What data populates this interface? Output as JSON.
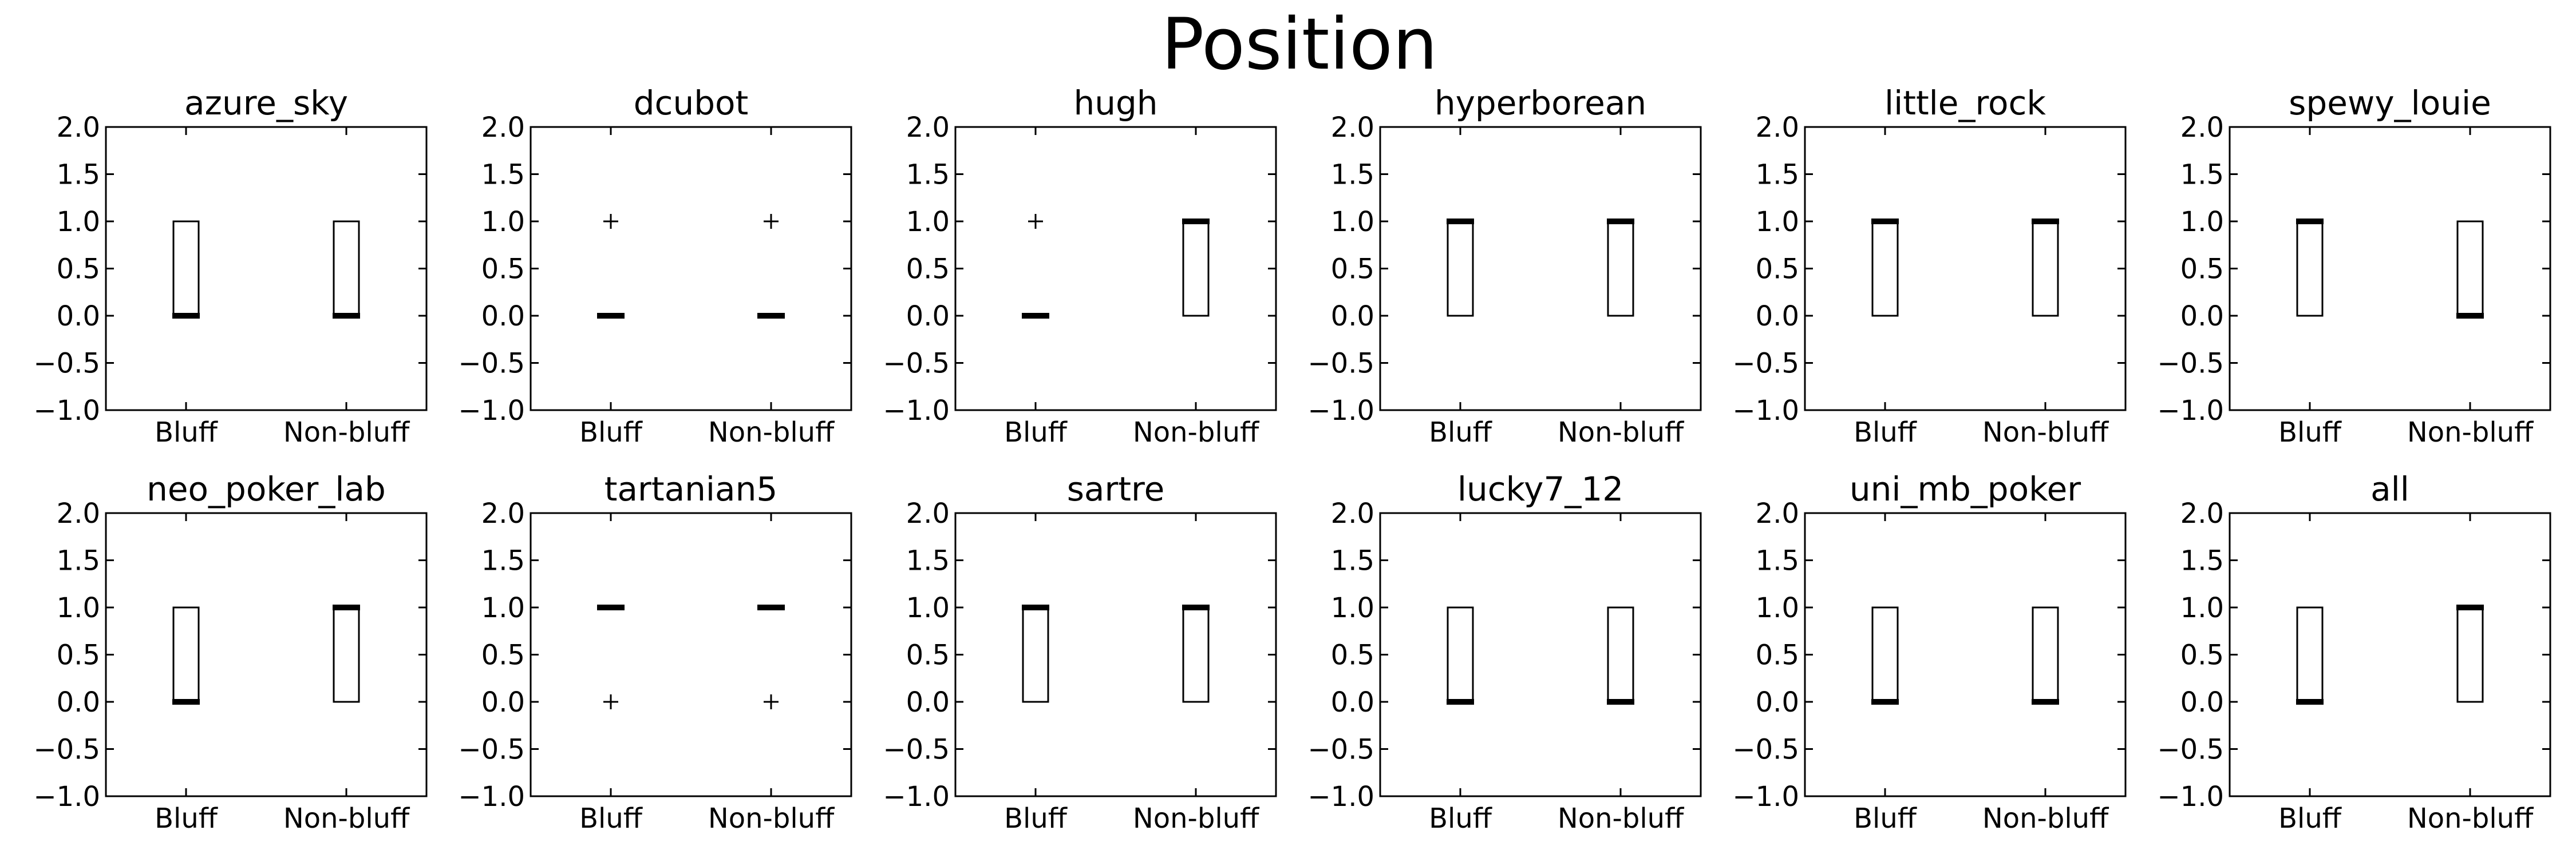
{
  "figure": {
    "title": "Position"
  },
  "chart_data": {
    "type": "box",
    "ylim": [
      -1.0,
      2.0
    ],
    "yticks": [
      "−1.0",
      "−0.5",
      "0.0",
      "0.5",
      "1.0",
      "1.5",
      "2.0"
    ],
    "ytick_values": [
      -1.0,
      -0.5,
      0.0,
      0.5,
      1.0,
      1.5,
      2.0
    ],
    "categories": [
      "Bluff",
      "Non-bluff"
    ],
    "grid": false,
    "panels": [
      {
        "title": "azure_sky",
        "boxes": [
          {
            "category": "Bluff",
            "q1": 0,
            "q3": 1,
            "median": 0,
            "fliers": []
          },
          {
            "category": "Non-bluff",
            "q1": 0,
            "q3": 1,
            "median": 0,
            "fliers": []
          }
        ]
      },
      {
        "title": "dcubot",
        "boxes": [
          {
            "category": "Bluff",
            "q1": 0,
            "q3": 0,
            "median": 0,
            "fliers": [
              1
            ]
          },
          {
            "category": "Non-bluff",
            "q1": 0,
            "q3": 0,
            "median": 0,
            "fliers": [
              1
            ]
          }
        ]
      },
      {
        "title": "hugh",
        "boxes": [
          {
            "category": "Bluff",
            "q1": 0,
            "q3": 0,
            "median": 0,
            "fliers": [
              1
            ]
          },
          {
            "category": "Non-bluff",
            "q1": 0,
            "q3": 1,
            "median": 1,
            "fliers": []
          }
        ]
      },
      {
        "title": "hyperborean",
        "boxes": [
          {
            "category": "Bluff",
            "q1": 0,
            "q3": 1,
            "median": 1,
            "fliers": []
          },
          {
            "category": "Non-bluff",
            "q1": 0,
            "q3": 1,
            "median": 1,
            "fliers": []
          }
        ]
      },
      {
        "title": "little_rock",
        "boxes": [
          {
            "category": "Bluff",
            "q1": 0,
            "q3": 1,
            "median": 1,
            "fliers": []
          },
          {
            "category": "Non-bluff",
            "q1": 0,
            "q3": 1,
            "median": 1,
            "fliers": []
          }
        ]
      },
      {
        "title": "spewy_louie",
        "boxes": [
          {
            "category": "Bluff",
            "q1": 0,
            "q3": 1,
            "median": 1,
            "fliers": []
          },
          {
            "category": "Non-bluff",
            "q1": 0,
            "q3": 1,
            "median": 0,
            "fliers": []
          }
        ]
      },
      {
        "title": "neo_poker_lab",
        "boxes": [
          {
            "category": "Bluff",
            "q1": 0,
            "q3": 1,
            "median": 0,
            "fliers": []
          },
          {
            "category": "Non-bluff",
            "q1": 0,
            "q3": 1,
            "median": 1,
            "fliers": []
          }
        ]
      },
      {
        "title": "tartanian5",
        "boxes": [
          {
            "category": "Bluff",
            "q1": 1,
            "q3": 1,
            "median": 1,
            "fliers": [
              0
            ]
          },
          {
            "category": "Non-bluff",
            "q1": 1,
            "q3": 1,
            "median": 1,
            "fliers": [
              0
            ]
          }
        ]
      },
      {
        "title": "sartre",
        "boxes": [
          {
            "category": "Bluff",
            "q1": 0,
            "q3": 1,
            "median": 1,
            "fliers": []
          },
          {
            "category": "Non-bluff",
            "q1": 0,
            "q3": 1,
            "median": 1,
            "fliers": []
          }
        ]
      },
      {
        "title": "lucky7_12",
        "boxes": [
          {
            "category": "Bluff",
            "q1": 0,
            "q3": 1,
            "median": 0,
            "fliers": []
          },
          {
            "category": "Non-bluff",
            "q1": 0,
            "q3": 1,
            "median": 0,
            "fliers": []
          }
        ]
      },
      {
        "title": "uni_mb_poker",
        "boxes": [
          {
            "category": "Bluff",
            "q1": 0,
            "q3": 1,
            "median": 0,
            "fliers": []
          },
          {
            "category": "Non-bluff",
            "q1": 0,
            "q3": 1,
            "median": 0,
            "fliers": []
          }
        ]
      },
      {
        "title": "all",
        "boxes": [
          {
            "category": "Bluff",
            "q1": 0,
            "q3": 1,
            "median": 0,
            "fliers": []
          },
          {
            "category": "Non-bluff",
            "q1": 0,
            "q3": 1,
            "median": 1,
            "fliers": []
          }
        ]
      }
    ]
  }
}
